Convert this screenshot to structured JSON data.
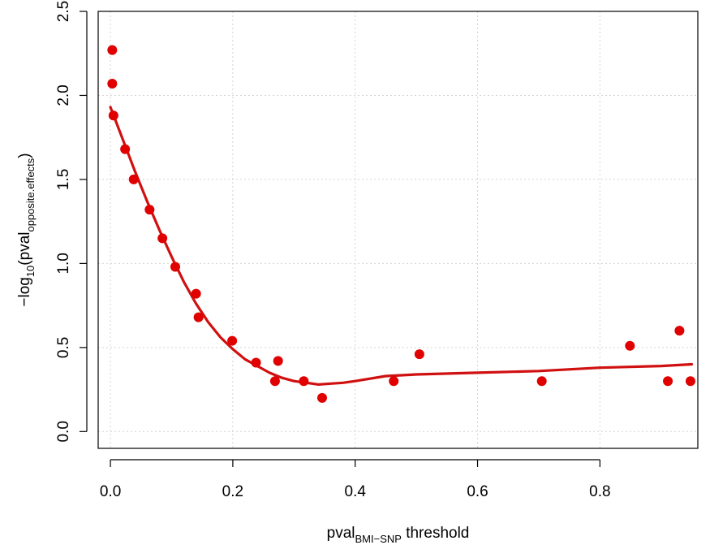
{
  "chart_data": {
    "type": "scatter",
    "title": "",
    "xlabel": {
      "main": "pval",
      "sub": "BMI−SNP",
      "rest": " threshold"
    },
    "ylabel": {
      "pre": "−log",
      "sub1": "10",
      "open": "(pval",
      "sub2": "opposite.effects",
      "close": ")"
    },
    "xlim": [
      -0.02,
      0.96
    ],
    "ylim": [
      -0.1,
      2.5
    ],
    "x_ticks": [
      0.0,
      0.2,
      0.4,
      0.6,
      0.8
    ],
    "x_tick_labels": [
      "0.0",
      "0.2",
      "0.4",
      "0.6",
      "0.8"
    ],
    "y_ticks": [
      0.0,
      0.5,
      1.0,
      1.5,
      2.0,
      2.5
    ],
    "y_tick_labels": [
      "0.0",
      "0.5",
      "1.0",
      "1.5",
      "2.0",
      "2.5"
    ],
    "grid": true,
    "point_color": "#e00000",
    "line_color": "#d01010",
    "series": [
      {
        "type": "points",
        "x": [
          0.003,
          0.003,
          0.005,
          0.024,
          0.038,
          0.064,
          0.085,
          0.106,
          0.14,
          0.144,
          0.199,
          0.238,
          0.269,
          0.274,
          0.316,
          0.346,
          0.463,
          0.505,
          0.705,
          0.849,
          0.911,
          0.93,
          0.948
        ],
        "y": [
          2.27,
          2.07,
          1.88,
          1.68,
          1.5,
          1.32,
          1.15,
          0.98,
          0.82,
          0.68,
          0.54,
          0.41,
          0.3,
          0.42,
          0.3,
          0.2,
          0.3,
          0.46,
          0.3,
          0.51,
          0.3,
          0.6,
          0.3
        ]
      },
      {
        "type": "smooth-line",
        "x": [
          0.0,
          0.02,
          0.04,
          0.06,
          0.08,
          0.1,
          0.12,
          0.14,
          0.16,
          0.18,
          0.2,
          0.22,
          0.24,
          0.26,
          0.28,
          0.3,
          0.32,
          0.34,
          0.36,
          0.38,
          0.4,
          0.45,
          0.5,
          0.6,
          0.7,
          0.8,
          0.9,
          0.95
        ],
        "y": [
          1.93,
          1.74,
          1.55,
          1.37,
          1.2,
          1.04,
          0.89,
          0.76,
          0.65,
          0.56,
          0.49,
          0.43,
          0.39,
          0.35,
          0.32,
          0.3,
          0.29,
          0.28,
          0.285,
          0.29,
          0.3,
          0.33,
          0.34,
          0.35,
          0.36,
          0.38,
          0.39,
          0.4
        ]
      }
    ]
  }
}
